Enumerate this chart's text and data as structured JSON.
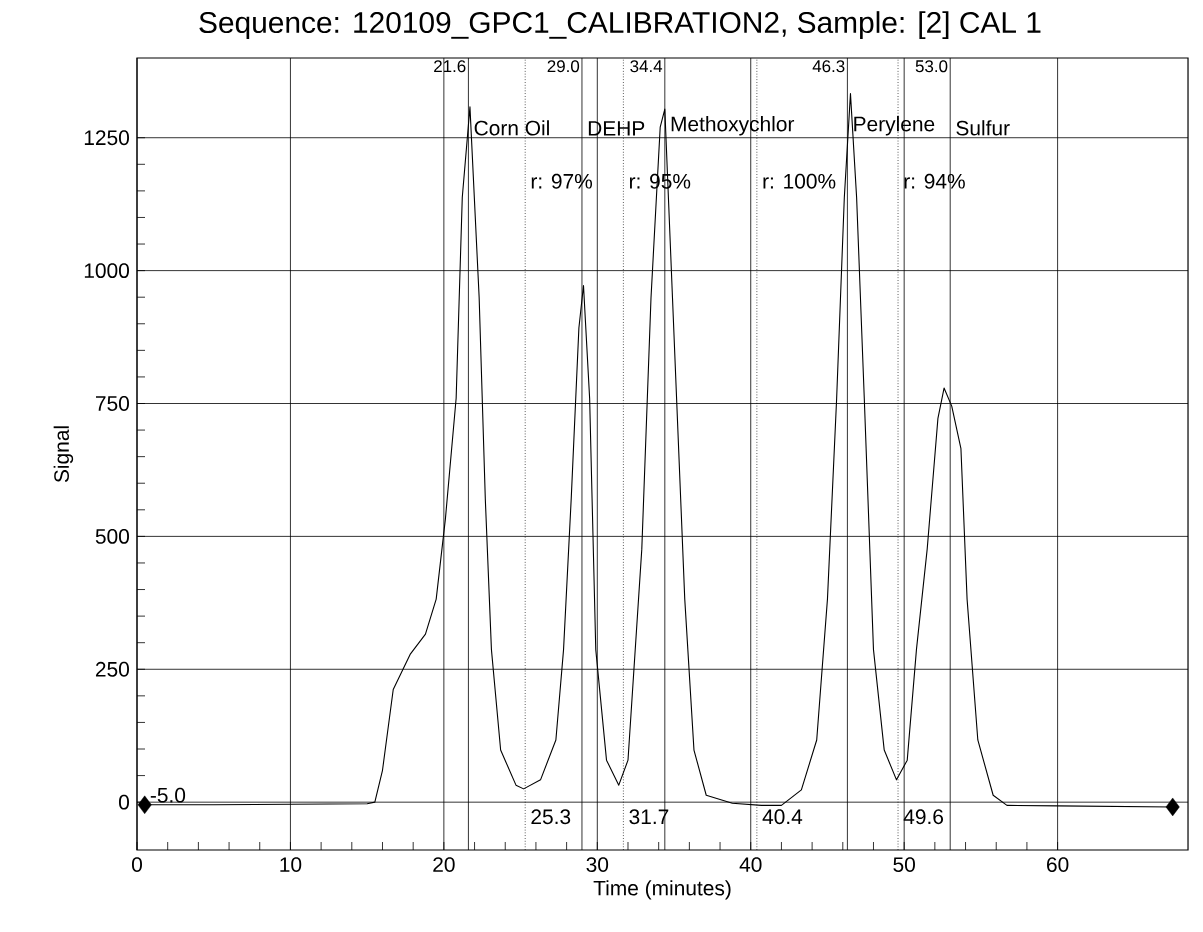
{
  "chart_data": {
    "type": "line",
    "title": "Sequence:  120109_GPC1_CALIBRATION2, Sample:  [2]  CAL 1",
    "xlabel": "Time (minutes)",
    "ylabel": "Signal",
    "xlim": [
      0,
      68.5
    ],
    "ylim": [
      -90,
      1400
    ],
    "xticks": [
      0,
      10,
      20,
      30,
      40,
      50,
      60
    ],
    "yticks": [
      0,
      250,
      500,
      750,
      1000,
      1250
    ],
    "grid": true,
    "series": [
      {
        "color": "#000000",
        "marker": "none",
        "x": [
          0.5,
          5,
          10,
          15,
          15.5,
          16.0,
          16.7,
          17.8,
          18.8,
          19.5,
          20.1,
          20.8,
          21.2,
          21.7,
          22.3,
          22.7,
          23.1,
          23.7,
          24.7,
          25.2,
          26.3,
          27.3,
          27.8,
          28.3,
          28.8,
          29.1,
          29.5,
          29.9,
          30.6,
          31.4,
          32.0,
          32.9,
          33.5,
          34.1,
          34.4,
          34.9,
          35.7,
          36.3,
          37.1,
          38.8,
          40.7,
          42.0,
          43.3,
          44.3,
          45.0,
          45.6,
          46.1,
          46.5,
          46.9,
          47.4,
          48.0,
          48.7,
          49.5,
          50.2,
          50.8,
          51.5,
          52.2,
          52.6,
          53.1,
          53.7,
          54.1,
          54.8,
          55.8,
          56.7,
          60,
          67.5
        ],
        "values": [
          -5,
          -5,
          -4,
          -3,
          0,
          60,
          212,
          278,
          316,
          382,
          533,
          760,
          1138,
          1308,
          949,
          571,
          287,
          98,
          32,
          25,
          42,
          117,
          287,
          571,
          892,
          972,
          760,
          287,
          79,
          32,
          79,
          476,
          949,
          1270,
          1304,
          949,
          382,
          98,
          13,
          -2,
          -6,
          -6,
          23,
          117,
          382,
          760,
          1138,
          1333,
          1138,
          760,
          287,
          98,
          42,
          79,
          287,
          476,
          722,
          779,
          745,
          665,
          382,
          117,
          13,
          -6,
          -7,
          -9
        ]
      },
      {
        "type": "scatter",
        "color": "#000000",
        "marker": "diamond",
        "x": [
          0.5,
          67.5
        ],
        "values": [
          -5,
          -9
        ]
      }
    ],
    "ref_lines": [
      {
        "axis": "x",
        "value": 21.6,
        "label": "21.6",
        "line_style": "solid"
      },
      {
        "axis": "x",
        "value": 29.0,
        "label": "29.0",
        "line_style": "solid"
      },
      {
        "axis": "x",
        "value": 34.4,
        "label": "34.4",
        "line_style": "solid"
      },
      {
        "axis": "x",
        "value": 46.3,
        "label": "46.3",
        "line_style": "solid"
      },
      {
        "axis": "x",
        "value": 53.0,
        "label": "53.0",
        "line_style": "solid"
      },
      {
        "axis": "x",
        "value": 25.3,
        "label": "25.3",
        "line_style": "dotted"
      },
      {
        "axis": "x",
        "value": 31.7,
        "label": "31.7",
        "line_style": "dotted"
      },
      {
        "axis": "x",
        "value": 40.4,
        "label": "40.4",
        "line_style": "dotted"
      },
      {
        "axis": "x",
        "value": 49.6,
        "label": "49.6",
        "line_style": "dotted"
      }
    ],
    "annotations": [
      {
        "text": "Corn Oil",
        "x": 21.6,
        "y": 1250
      },
      {
        "text": "DEHP",
        "x": 29.0,
        "y": 1250
      },
      {
        "text": "Methoxychlor",
        "x": 34.4,
        "y": 1250
      },
      {
        "text": "Perylene",
        "x": 46.3,
        "y": 1250
      },
      {
        "text": "Sulfur",
        "x": 53.0,
        "y": 1250
      },
      {
        "text": "r: 97%",
        "x": 25.3,
        "y": 1150
      },
      {
        "text": "r: 95%",
        "x": 31.7,
        "y": 1150
      },
      {
        "text": "r: 100%",
        "x": 40.4,
        "y": 1150
      },
      {
        "text": "r: 94%",
        "x": 49.6,
        "y": 1150
      },
      {
        "text": "-5.0",
        "x": 0.5,
        "y": -5
      }
    ]
  }
}
